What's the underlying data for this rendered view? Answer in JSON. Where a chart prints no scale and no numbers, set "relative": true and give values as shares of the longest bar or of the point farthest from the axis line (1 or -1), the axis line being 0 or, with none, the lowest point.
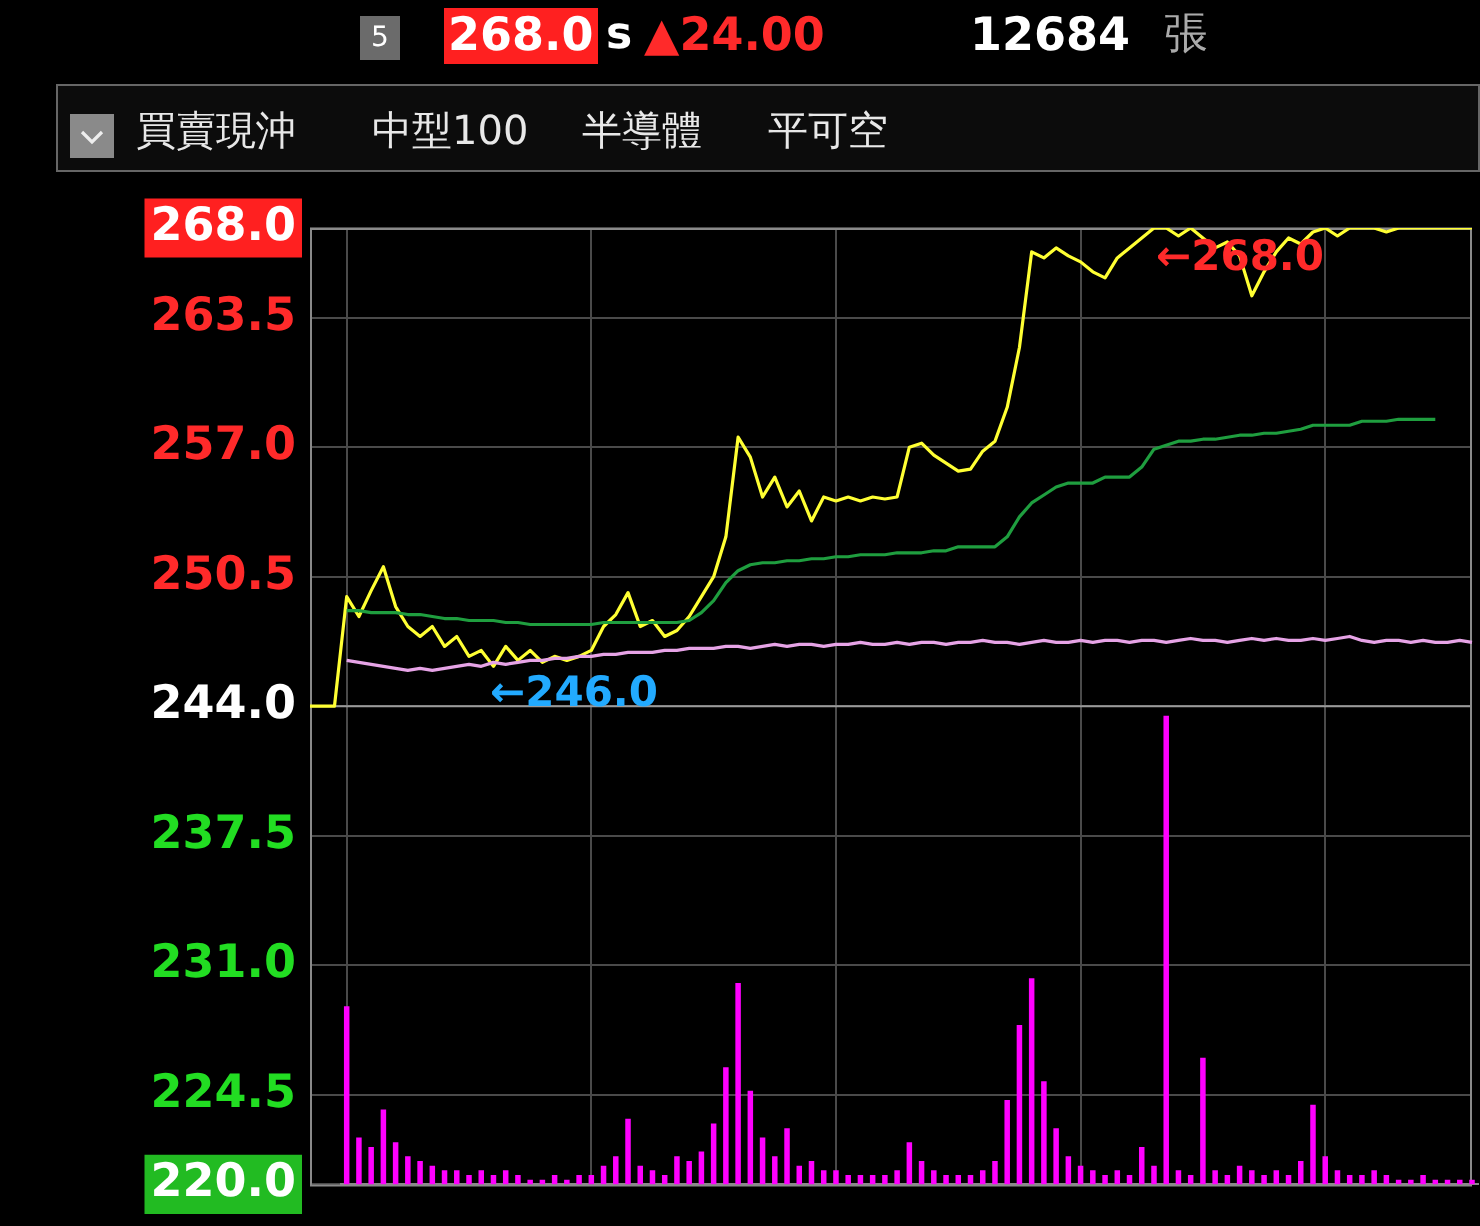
{
  "chart_data": [
    {
      "type": "line",
      "categories": [
        null,
        null,
        null,
        null,
        null,
        null,
        null,
        null,
        null,
        null,
        null,
        null,
        null,
        null,
        null,
        null,
        null,
        null,
        null,
        null,
        null,
        null,
        null,
        null,
        null,
        null,
        null,
        null,
        null,
        null,
        null,
        null,
        null,
        null,
        null,
        null,
        null,
        null,
        null,
        null,
        null,
        null,
        null,
        null,
        null,
        null,
        null,
        null,
        null,
        null,
        null,
        null,
        null,
        null,
        null,
        null,
        null,
        null,
        null,
        null,
        null,
        null,
        null,
        null,
        null,
        null,
        null,
        null,
        null,
        null,
        null,
        null,
        null,
        null,
        null,
        null,
        null,
        null,
        null,
        null,
        null,
        null,
        null,
        null,
        null,
        null,
        null,
        null,
        null,
        null,
        null,
        null,
        null,
        null,
        null,
        null
      ],
      "series": [
        {
          "color": "#e6a3e6",
          "values": [
            null,
            null,
            null,
            246.3,
            246.2,
            246.1,
            246.0,
            245.9,
            245.8,
            245.9,
            245.8,
            245.9,
            246.0,
            246.1,
            246.0,
            246.2,
            246.1,
            246.2,
            246.3,
            246.3,
            246.4,
            246.4,
            246.5,
            246.5,
            246.6,
            246.6,
            246.7,
            246.7,
            246.7,
            246.8,
            246.8,
            246.9,
            246.9,
            246.9,
            247.0,
            247.0,
            246.9,
            247.0,
            247.1,
            247.0,
            247.1,
            247.1,
            247.0,
            247.1,
            247.1,
            247.2,
            247.1,
            247.1,
            247.2,
            247.1,
            247.2,
            247.2,
            247.1,
            247.2,
            247.2,
            247.3,
            247.2,
            247.2,
            247.1,
            247.2,
            247.3,
            247.2,
            247.2,
            247.3,
            247.2,
            247.3,
            247.3,
            247.2,
            247.3,
            247.3,
            247.2,
            247.3,
            247.4,
            247.3,
            247.3,
            247.2,
            247.3,
            247.4,
            247.3,
            247.4,
            247.3,
            247.3,
            247.4,
            247.3,
            247.4,
            247.5,
            247.3,
            247.2,
            247.3,
            247.3,
            247.2,
            247.3,
            247.2,
            247.2,
            247.3,
            247.2
          ]
        },
        {
          "color": "#1f9e3f",
          "values": [
            null,
            null,
            null,
            248.8,
            248.8,
            248.7,
            248.7,
            248.7,
            248.6,
            248.6,
            248.5,
            248.4,
            248.4,
            248.3,
            248.3,
            248.3,
            248.2,
            248.2,
            248.1,
            248.1,
            248.1,
            248.1,
            248.1,
            248.1,
            248.2,
            248.2,
            248.2,
            248.2,
            248.2,
            248.2,
            248.2,
            248.3,
            248.7,
            249.3,
            250.2,
            250.8,
            251.1,
            251.2,
            251.2,
            251.3,
            251.3,
            251.4,
            251.4,
            251.5,
            251.5,
            251.6,
            251.6,
            251.6,
            251.7,
            251.7,
            251.7,
            251.8,
            251.8,
            252.0,
            252.0,
            252.0,
            252.0,
            252.5,
            253.5,
            254.2,
            254.6,
            255.0,
            255.2,
            255.2,
            255.2,
            255.5,
            255.5,
            255.5,
            256.0,
            256.9,
            257.1,
            257.3,
            257.3,
            257.4,
            257.4,
            257.5,
            257.6,
            257.6,
            257.7,
            257.7,
            257.8,
            257.9,
            258.1,
            258.1,
            258.1,
            258.1,
            258.3,
            258.3,
            258.3,
            258.4,
            258.4,
            258.4,
            258.4,
            null,
            null,
            null
          ]
        },
        {
          "color": "#ffff33",
          "values": [
            244,
            244,
            244,
            249.5,
            248.5,
            249.8,
            251.0,
            249,
            248,
            247.5,
            248,
            247,
            247.5,
            246.5,
            246.8,
            246.0,
            247,
            246.3,
            246.8,
            246.2,
            246.5,
            246.3,
            246.5,
            246.8,
            248,
            248.6,
            249.7,
            248,
            248.3,
            247.5,
            247.8,
            248.5,
            249.5,
            250.5,
            252.5,
            257.5,
            256.5,
            254.5,
            255.5,
            254.0,
            254.8,
            253.3,
            254.5,
            254.3,
            254.5,
            254.3,
            254.5,
            254.4,
            254.5,
            257.0,
            257.2,
            256.6,
            256.2,
            255.8,
            255.9,
            256.8,
            257.3,
            259.0,
            262.0,
            266.8,
            266.5,
            267.0,
            266.6,
            266.3,
            265.8,
            265.5,
            266.5,
            267.0,
            267.5,
            268.0,
            268.0,
            267.6,
            268.0,
            267.5,
            267.0,
            267.3,
            266.6,
            264.6,
            265.8,
            266.8,
            267.5,
            267.2,
            267.8,
            268.0,
            267.6,
            268.0,
            268.0,
            268.0,
            267.8,
            268.0,
            268,
            268,
            268,
            268,
            268,
            268
          ]
        }
      ],
      "ylim": [
        220,
        268
      ],
      "yticks": [
        {
          "value": 220,
          "label": "220.0"
        },
        {
          "value": 224.5,
          "label": "224.5"
        },
        {
          "value": 231,
          "label": "231.0"
        },
        {
          "value": 237.5,
          "label": "237.5"
        },
        {
          "value": 244,
          "label": "244.0"
        },
        {
          "value": 250.5,
          "label": "250.5"
        },
        {
          "value": 257,
          "label": "257.0"
        },
        {
          "value": 263.5,
          "label": "263.5"
        },
        {
          "value": 268,
          "label": "268.0"
        }
      ],
      "ref_lines": [
        {
          "axis": "y",
          "value": 244
        }
      ],
      "grid": true,
      "tick_labels": "y",
      "marker": "none",
      "annotations": [
        "5",
        "268.0",
        "s",
        "▲24.00",
        "12684",
        "張",
        "買賣現沖",
        "中型100",
        "半導體",
        "平可空",
        "←268.0",
        {
          "text": "←246.0",
          "y": 246
        }
      ]
    },
    {
      "type": "bar",
      "relative": true,
      "color": "#ff00ff",
      "categories": [
        null,
        null,
        null,
        null,
        null,
        null,
        null,
        null,
        null,
        null,
        null,
        null,
        null,
        null,
        null,
        null,
        null,
        null,
        null,
        null,
        null,
        null,
        null,
        null,
        null,
        null,
        null,
        null,
        null,
        null,
        null,
        null,
        null,
        null,
        null,
        null,
        null,
        null,
        null,
        null,
        null,
        null,
        null,
        null,
        null,
        null,
        null,
        null,
        null,
        null,
        null,
        null,
        null,
        null,
        null,
        null,
        null,
        null,
        null,
        null,
        null,
        null,
        null,
        null,
        null,
        null,
        null,
        null,
        null,
        null,
        null,
        null,
        null,
        null,
        null,
        null,
        null,
        null,
        null,
        null,
        null,
        null,
        null,
        null,
        null,
        null,
        null,
        null,
        null,
        null,
        null,
        null,
        null
      ],
      "values": [
        0.38,
        0.1,
        0.08,
        0.16,
        0.09,
        0.06,
        0.05,
        0.04,
        0.03,
        0.03,
        0.02,
        0.03,
        0.02,
        0.03,
        0.02,
        0.01,
        0.01,
        0.02,
        0.01,
        0.02,
        0.02,
        0.04,
        0.06,
        0.14,
        0.04,
        0.03,
        0.02,
        0.06,
        0.05,
        0.07,
        0.13,
        0.25,
        0.43,
        0.2,
        0.1,
        0.06,
        0.12,
        0.04,
        0.05,
        0.03,
        0.03,
        0.02,
        0.02,
        0.02,
        0.02,
        0.03,
        0.09,
        0.05,
        0.03,
        0.02,
        0.02,
        0.02,
        0.03,
        0.05,
        0.18,
        0.34,
        0.44,
        0.22,
        0.12,
        0.06,
        0.04,
        0.03,
        0.02,
        0.03,
        0.02,
        0.08,
        0.04,
        1,
        0.03,
        0.02,
        0.27,
        0.03,
        0.02,
        0.04,
        0.03,
        0.02,
        0.03,
        0.02,
        0.05,
        0.17,
        0.06,
        0.03,
        0.02,
        0.02,
        0.03,
        0.02,
        0.01,
        0.01,
        0.02,
        0.01,
        0.01,
        0.01,
        0.01
      ]
    }
  ]
}
